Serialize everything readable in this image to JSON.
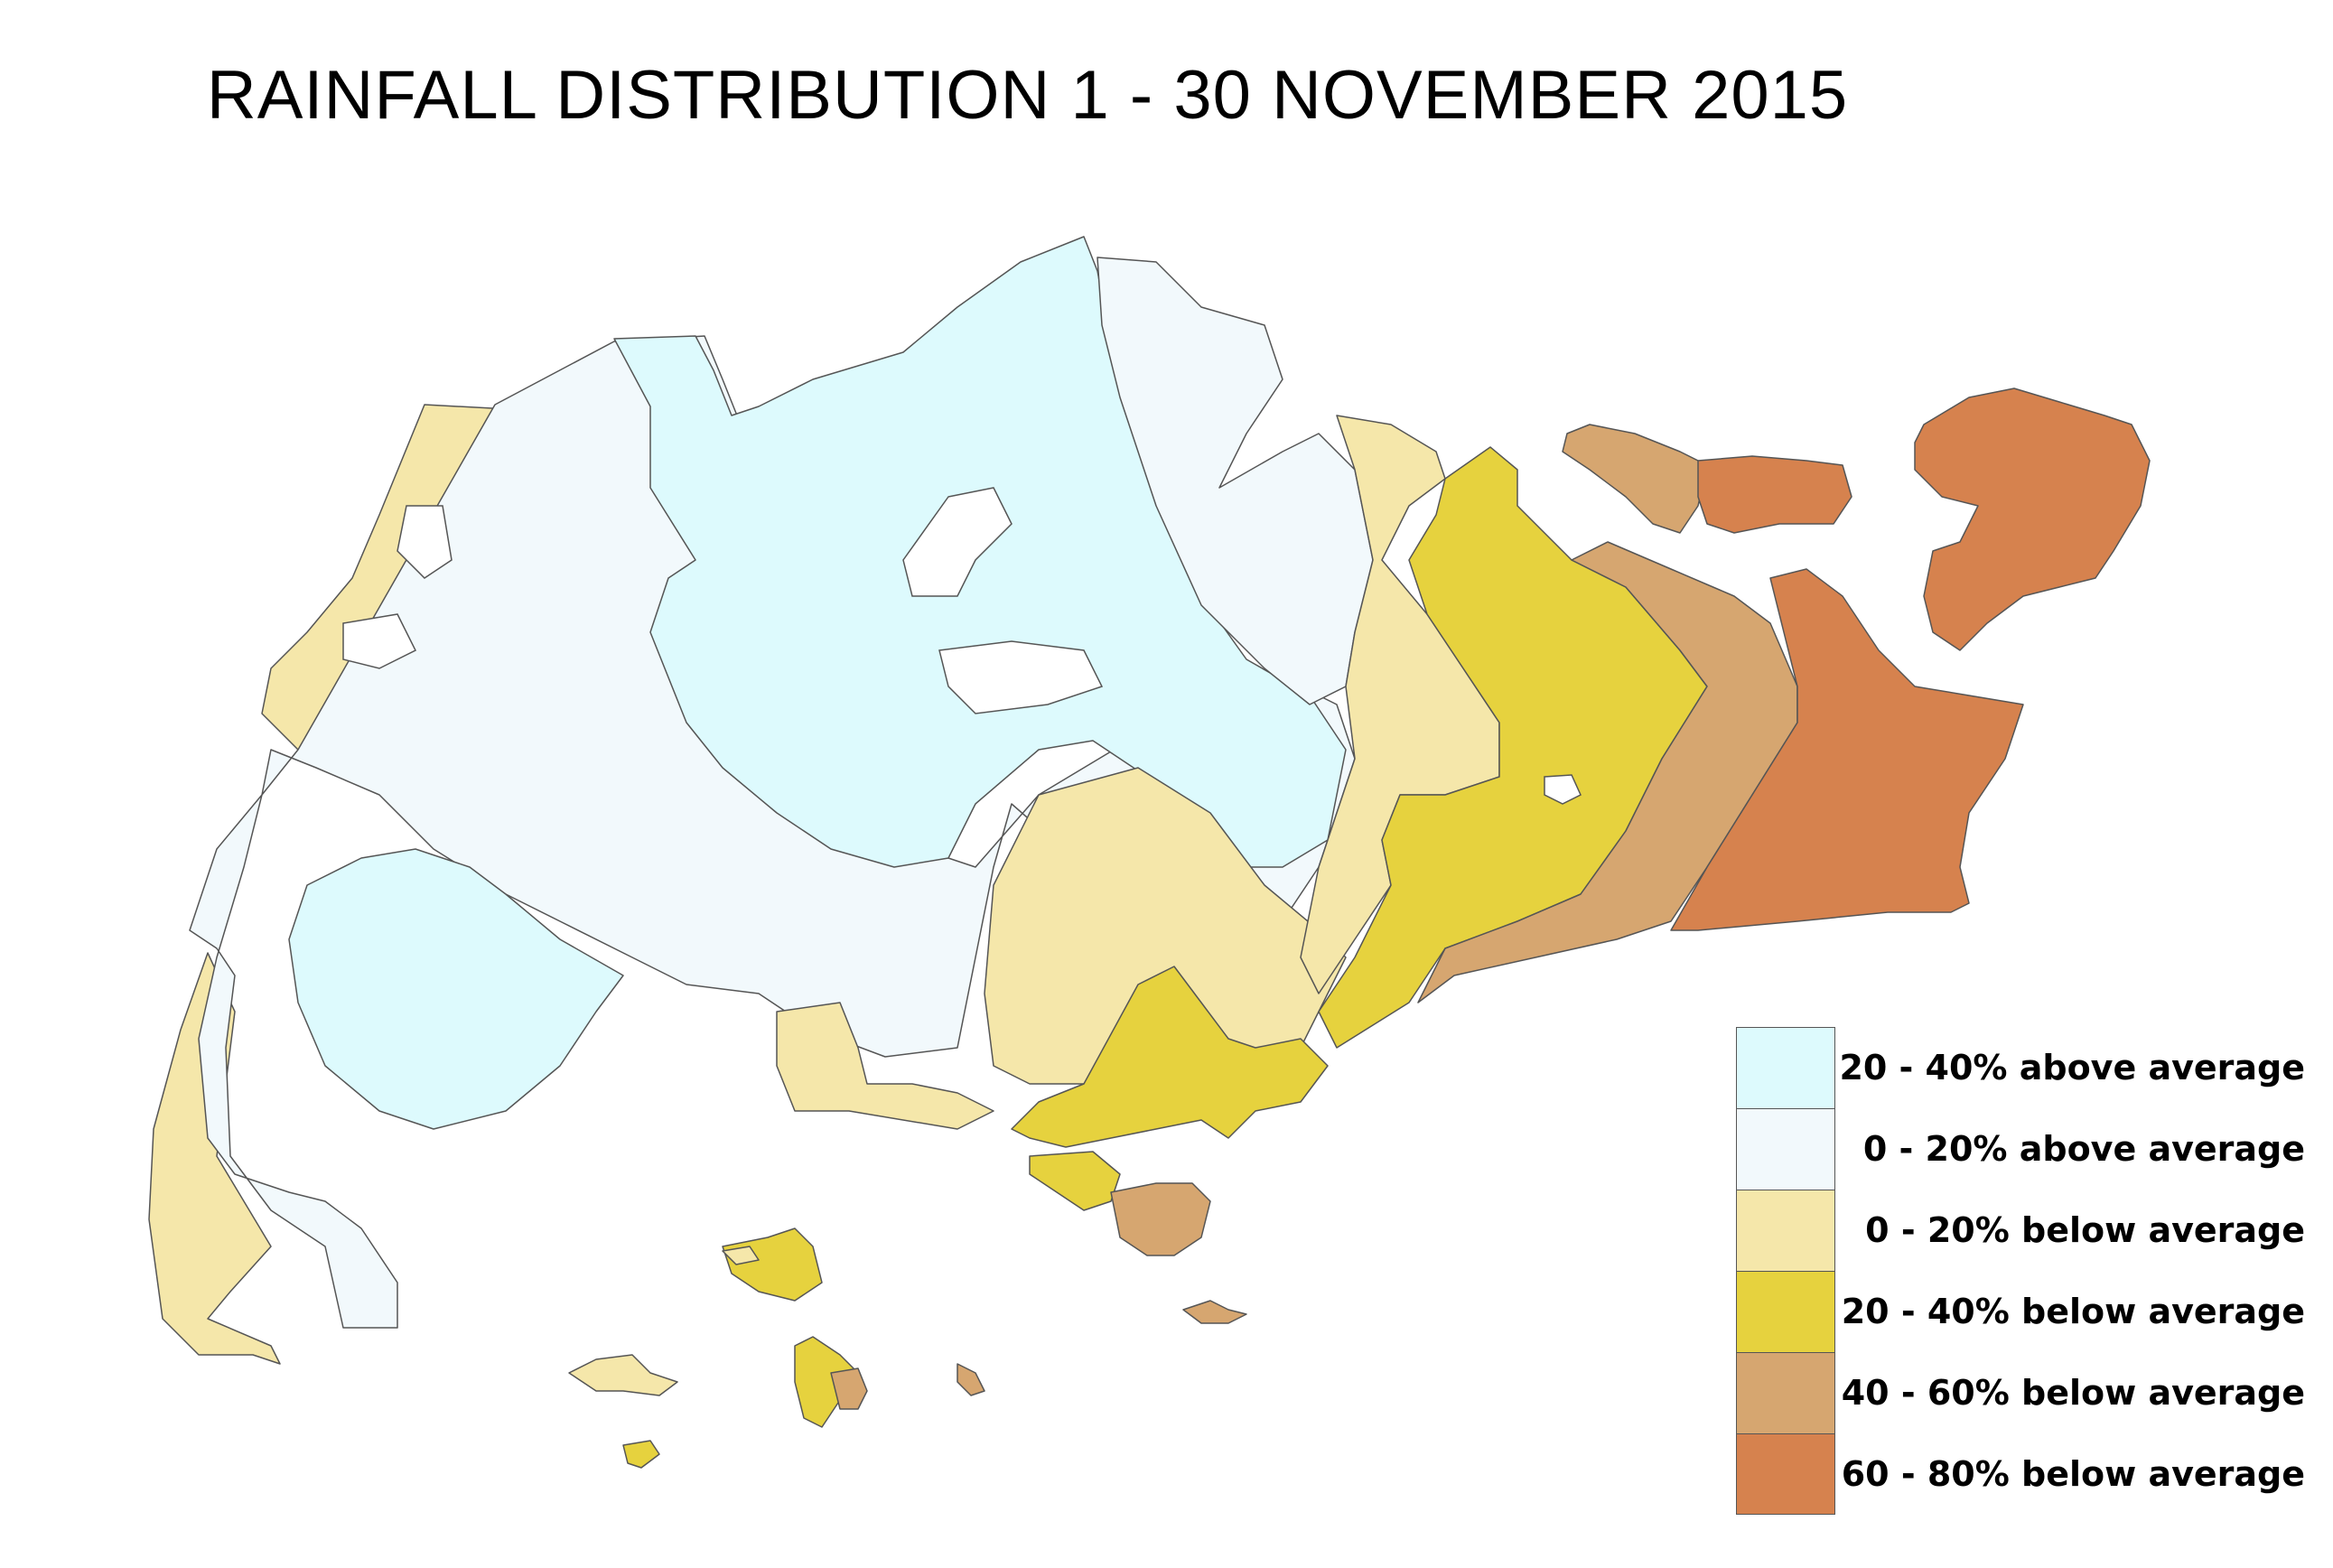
{
  "title": "RAINFALL DISTRIBUTION 1 - 30 NOVEMBER 2015",
  "legend": [
    {
      "label": "20 - 40% above average",
      "color": "#DDFAFD"
    },
    {
      "label": "0 - 20% above average",
      "color": "#F2F9FC"
    },
    {
      "label": "0 - 20% below average",
      "color": "#F5E7AA"
    },
    {
      "label": "20 - 40% below average",
      "color": "#E6D23E"
    },
    {
      "label": "40 - 60% below average",
      "color": "#D6A670"
    },
    {
      "label": "60 - 80% below average",
      "color": "#D6824E"
    }
  ]
}
